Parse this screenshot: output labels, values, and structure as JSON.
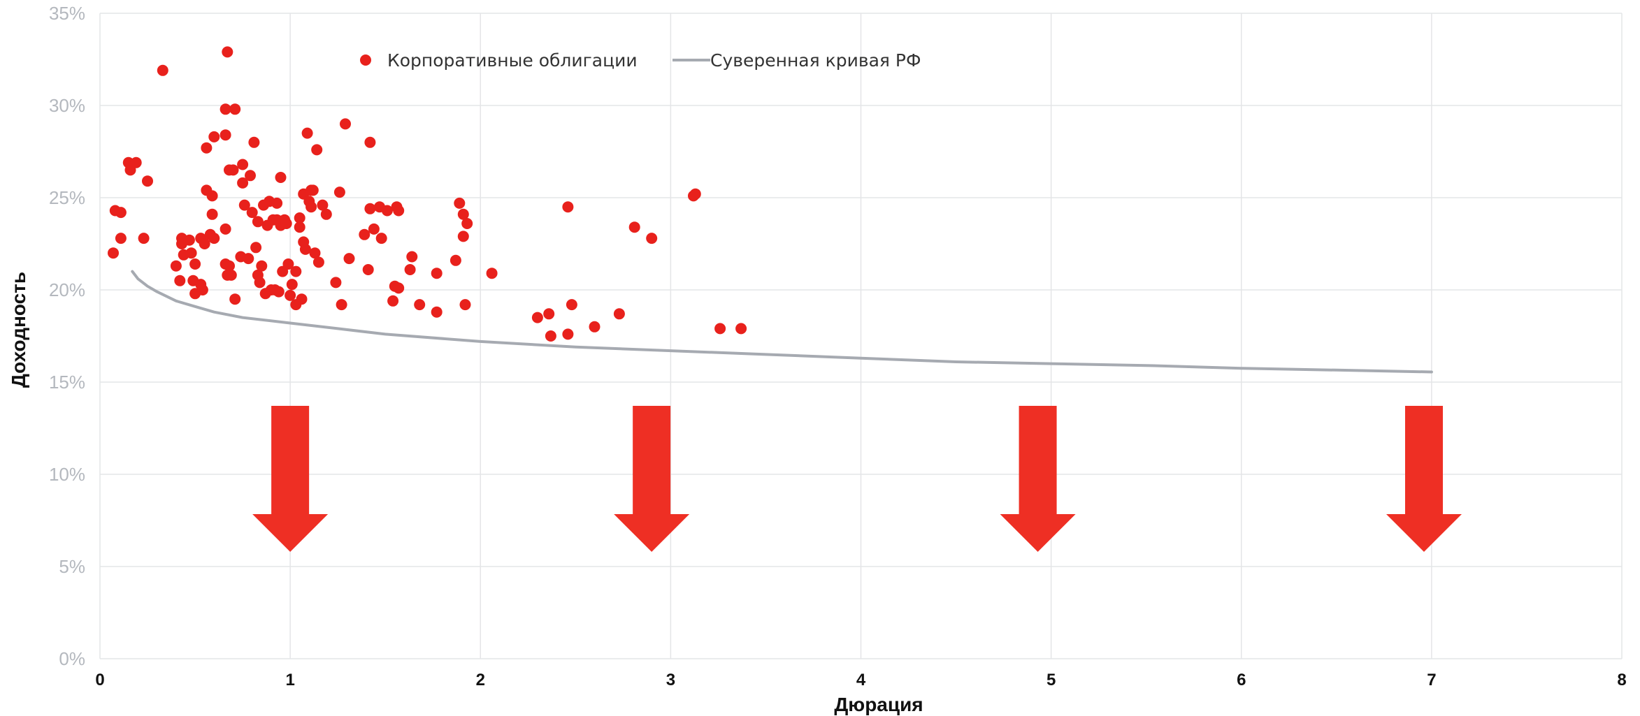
{
  "chart_data": {
    "type": "scatter",
    "xlabel": "Дюрация",
    "ylabel": "Доходность",
    "xlim": [
      0,
      8
    ],
    "ylim": [
      0,
      35
    ],
    "x_ticks": [
      "0",
      "1",
      "2",
      "3",
      "4",
      "5",
      "6",
      "7",
      "8"
    ],
    "y_ticks": [
      "0%",
      "5%",
      "10%",
      "15%",
      "20%",
      "25%",
      "30%",
      "35%"
    ],
    "grid": true,
    "legend_position": "top-center",
    "colors": {
      "scatter": "#e8211c",
      "curve": "#a6aab1",
      "arrow": "#ee2f24"
    },
    "series": [
      {
        "name": "Корпоративные облигации",
        "kind": "scatter",
        "points": [
          [
            0.07,
            22.0
          ],
          [
            0.08,
            24.3
          ],
          [
            0.11,
            22.8
          ],
          [
            0.11,
            24.2
          ],
          [
            0.15,
            26.9
          ],
          [
            0.16,
            26.5
          ],
          [
            0.19,
            26.9
          ],
          [
            0.23,
            22.8
          ],
          [
            0.25,
            25.9
          ],
          [
            0.33,
            31.9
          ],
          [
            0.4,
            21.3
          ],
          [
            0.42,
            20.5
          ],
          [
            0.43,
            22.5
          ],
          [
            0.43,
            22.8
          ],
          [
            0.44,
            21.9
          ],
          [
            0.47,
            22.7
          ],
          [
            0.48,
            22.0
          ],
          [
            0.49,
            20.5
          ],
          [
            0.5,
            19.8
          ],
          [
            0.5,
            21.4
          ],
          [
            0.53,
            20.3
          ],
          [
            0.53,
            22.8
          ],
          [
            0.54,
            20.0
          ],
          [
            0.55,
            22.5
          ],
          [
            0.56,
            27.7
          ],
          [
            0.56,
            25.4
          ],
          [
            0.58,
            23.0
          ],
          [
            0.59,
            25.1
          ],
          [
            0.59,
            24.1
          ],
          [
            0.6,
            28.3
          ],
          [
            0.6,
            22.8
          ],
          [
            0.66,
            29.8
          ],
          [
            0.66,
            28.4
          ],
          [
            0.66,
            23.3
          ],
          [
            0.66,
            21.4
          ],
          [
            0.67,
            20.8
          ],
          [
            0.67,
            32.9
          ],
          [
            0.68,
            26.5
          ],
          [
            0.68,
            21.3
          ],
          [
            0.69,
            20.8
          ],
          [
            0.7,
            26.5
          ],
          [
            0.71,
            19.5
          ],
          [
            0.71,
            29.8
          ],
          [
            0.74,
            21.8
          ],
          [
            0.75,
            26.8
          ],
          [
            0.75,
            25.8
          ],
          [
            0.76,
            24.6
          ],
          [
            0.78,
            21.7
          ],
          [
            0.79,
            26.2
          ],
          [
            0.8,
            24.2
          ],
          [
            0.81,
            28.0
          ],
          [
            0.82,
            22.3
          ],
          [
            0.83,
            20.8
          ],
          [
            0.83,
            23.7
          ],
          [
            0.84,
            20.4
          ],
          [
            0.85,
            21.3
          ],
          [
            0.86,
            24.6
          ],
          [
            0.87,
            19.8
          ],
          [
            0.88,
            23.5
          ],
          [
            0.89,
            24.8
          ],
          [
            0.9,
            20.0
          ],
          [
            0.91,
            23.8
          ],
          [
            0.92,
            20.0
          ],
          [
            0.93,
            23.8
          ],
          [
            0.93,
            24.7
          ],
          [
            0.94,
            19.9
          ],
          [
            0.95,
            26.1
          ],
          [
            0.95,
            23.5
          ],
          [
            0.96,
            21.0
          ],
          [
            0.97,
            23.8
          ],
          [
            0.98,
            23.6
          ],
          [
            0.99,
            21.4
          ],
          [
            1.0,
            19.7
          ],
          [
            1.01,
            20.3
          ],
          [
            1.03,
            19.2
          ],
          [
            1.03,
            21.0
          ],
          [
            1.05,
            23.4
          ],
          [
            1.05,
            23.9
          ],
          [
            1.06,
            19.5
          ],
          [
            1.07,
            25.2
          ],
          [
            1.07,
            22.6
          ],
          [
            1.08,
            22.2
          ],
          [
            1.09,
            28.5
          ],
          [
            1.1,
            24.8
          ],
          [
            1.11,
            24.5
          ],
          [
            1.11,
            25.4
          ],
          [
            1.12,
            25.4
          ],
          [
            1.13,
            22.0
          ],
          [
            1.14,
            27.6
          ],
          [
            1.15,
            21.5
          ],
          [
            1.17,
            24.6
          ],
          [
            1.19,
            24.1
          ],
          [
            1.24,
            20.4
          ],
          [
            1.26,
            25.3
          ],
          [
            1.27,
            19.2
          ],
          [
            1.29,
            29.0
          ],
          [
            1.31,
            21.7
          ],
          [
            1.39,
            23.0
          ],
          [
            1.41,
            21.1
          ],
          [
            1.42,
            24.4
          ],
          [
            1.42,
            28.0
          ],
          [
            1.44,
            23.3
          ],
          [
            1.47,
            24.5
          ],
          [
            1.48,
            22.8
          ],
          [
            1.51,
            24.3
          ],
          [
            1.54,
            19.4
          ],
          [
            1.55,
            20.2
          ],
          [
            1.56,
            24.5
          ],
          [
            1.57,
            20.1
          ],
          [
            1.57,
            24.3
          ],
          [
            1.63,
            21.1
          ],
          [
            1.64,
            21.8
          ],
          [
            1.68,
            19.2
          ],
          [
            1.77,
            18.8
          ],
          [
            1.77,
            20.9
          ],
          [
            1.87,
            21.6
          ],
          [
            1.89,
            24.7
          ],
          [
            1.91,
            22.9
          ],
          [
            1.91,
            24.1
          ],
          [
            1.92,
            19.2
          ],
          [
            1.93,
            23.6
          ],
          [
            2.06,
            20.9
          ],
          [
            2.3,
            18.5
          ],
          [
            2.36,
            18.7
          ],
          [
            2.37,
            17.5
          ],
          [
            2.46,
            24.5
          ],
          [
            2.46,
            17.6
          ],
          [
            2.48,
            19.2
          ],
          [
            2.6,
            18.0
          ],
          [
            2.73,
            18.7
          ],
          [
            2.81,
            23.4
          ],
          [
            2.9,
            22.8
          ],
          [
            3.12,
            25.1
          ],
          [
            3.13,
            25.2
          ],
          [
            3.26,
            17.9
          ],
          [
            3.37,
            17.9
          ]
        ]
      },
      {
        "name": "Суверенная кривая РФ",
        "kind": "line",
        "points": [
          [
            0.17,
            21.0
          ],
          [
            0.2,
            20.6
          ],
          [
            0.25,
            20.2
          ],
          [
            0.3,
            19.9
          ],
          [
            0.4,
            19.4
          ],
          [
            0.5,
            19.1
          ],
          [
            0.6,
            18.8
          ],
          [
            0.75,
            18.5
          ],
          [
            1.0,
            18.2
          ],
          [
            1.25,
            17.9
          ],
          [
            1.5,
            17.6
          ],
          [
            2.0,
            17.2
          ],
          [
            2.5,
            16.9
          ],
          [
            3.0,
            16.7
          ],
          [
            3.5,
            16.5
          ],
          [
            4.0,
            16.3
          ],
          [
            4.5,
            16.1
          ],
          [
            5.0,
            16.0
          ],
          [
            5.5,
            15.9
          ],
          [
            6.0,
            15.75
          ],
          [
            6.5,
            15.65
          ],
          [
            7.0,
            15.55
          ]
        ]
      }
    ],
    "annotations": {
      "down_arrows_at_x": [
        1.0,
        2.9,
        4.93,
        6.96
      ]
    }
  }
}
